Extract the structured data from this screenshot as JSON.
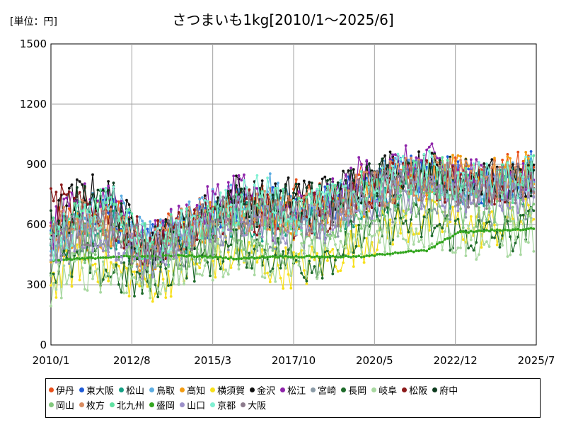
{
  "chart_data": {
    "type": "line",
    "title": "さつまいも1kg[2010/1～2025/6]",
    "unit_label": "[単位：円]",
    "ylim": [
      0,
      1500
    ],
    "y_ticks": [
      0,
      300,
      600,
      900,
      1200,
      1500
    ],
    "y_tick_labels": [
      "0",
      "300",
      "600",
      "900",
      "1200",
      "1500"
    ],
    "x_start": "2010-01",
    "x_end": "2025-07",
    "x_ticks": [
      "2010-01",
      "2012-08",
      "2015-03",
      "2017-10",
      "2020-05",
      "2022-12",
      "2025-07"
    ],
    "x_tick_labels": [
      "2010/1",
      "2012/8",
      "2015/3",
      "2017/10",
      "2020/5",
      "2022/12",
      "2025/7"
    ],
    "grid": true,
    "legend_position": "bottom",
    "anchor_dates": [
      "2010-01",
      "2011-01",
      "2012-01",
      "2013-01",
      "2014-01",
      "2015-01",
      "2016-01",
      "2017-01",
      "2018-01",
      "2019-01",
      "2020-01",
      "2021-01",
      "2022-01",
      "2023-01",
      "2024-01",
      "2025-01",
      "2025-06"
    ],
    "series": [
      {
        "name": "伊丹",
        "color": "#e8501a",
        "values": [
          560,
          620,
          650,
          480,
          610,
          640,
          700,
          690,
          720,
          700,
          800,
          860,
          830,
          850,
          820,
          860,
          880
        ]
      },
      {
        "name": "東大阪",
        "color": "#1f5bd6",
        "values": [
          520,
          600,
          640,
          470,
          560,
          600,
          690,
          700,
          650,
          690,
          780,
          820,
          850,
          820,
          800,
          840,
          900
        ]
      },
      {
        "name": "松山",
        "color": "#16a085",
        "values": [
          500,
          610,
          580,
          450,
          520,
          570,
          640,
          620,
          600,
          650,
          720,
          780,
          800,
          780,
          780,
          800,
          820
        ]
      },
      {
        "name": "鳥取",
        "color": "#5dade2",
        "values": [
          540,
          650,
          680,
          500,
          580,
          660,
          720,
          760,
          640,
          700,
          760,
          840,
          830,
          810,
          790,
          820,
          860
        ]
      },
      {
        "name": "高知",
        "color": "#f39c12",
        "values": [
          510,
          580,
          560,
          460,
          540,
          620,
          660,
          640,
          620,
          680,
          740,
          800,
          820,
          840,
          830,
          850,
          870
        ]
      },
      {
        "name": "横須賀",
        "color": "#f7e01c",
        "values": [
          320,
          420,
          380,
          300,
          360,
          420,
          460,
          400,
          380,
          440,
          520,
          600,
          620,
          600,
          580,
          620,
          640
        ]
      },
      {
        "name": "金沢",
        "color": "#111111",
        "values": [
          600,
          760,
          720,
          480,
          560,
          660,
          760,
          700,
          760,
          740,
          850,
          880,
          860,
          860,
          820,
          800,
          820
        ]
      },
      {
        "name": "松江",
        "color": "#8e24aa",
        "values": [
          560,
          700,
          760,
          470,
          600,
          680,
          800,
          620,
          680,
          720,
          860,
          880,
          900,
          860,
          820,
          800,
          860
        ]
      },
      {
        "name": "宮崎",
        "color": "#8a9aa6",
        "values": [
          440,
          540,
          520,
          400,
          480,
          520,
          600,
          560,
          560,
          600,
          680,
          720,
          740,
          720,
          700,
          720,
          740
        ]
      },
      {
        "name": "長岡",
        "color": "#1e6b2a",
        "values": [
          380,
          420,
          360,
          300,
          400,
          440,
          500,
          460,
          400,
          460,
          560,
          620,
          600,
          560,
          540,
          560,
          600
        ]
      },
      {
        "name": "岐阜",
        "color": "#a8d8a0",
        "values": [
          300,
          380,
          360,
          320,
          360,
          420,
          460,
          420,
          420,
          460,
          520,
          560,
          580,
          540,
          520,
          540,
          560
        ]
      },
      {
        "name": "松阪",
        "color": "#8b1a1a",
        "values": [
          700,
          680,
          620,
          500,
          560,
          620,
          680,
          640,
          640,
          680,
          760,
          800,
          820,
          800,
          780,
          780,
          800
        ]
      },
      {
        "name": "府中",
        "color": "#0d3b1e",
        "values": [
          580,
          720,
          700,
          460,
          540,
          600,
          700,
          680,
          700,
          720,
          800,
          840,
          860,
          820,
          800,
          780,
          800
        ]
      },
      {
        "name": "岡山",
        "color": "#82c77d",
        "values": [
          440,
          520,
          500,
          380,
          460,
          500,
          560,
          540,
          520,
          560,
          640,
          680,
          700,
          680,
          660,
          680,
          700
        ]
      },
      {
        "name": "枚方",
        "color": "#d98b5f",
        "values": [
          560,
          620,
          600,
          480,
          560,
          620,
          680,
          660,
          640,
          700,
          760,
          820,
          840,
          820,
          800,
          820,
          840
        ]
      },
      {
        "name": "北九州",
        "color": "#5ee0a0",
        "values": [
          520,
          640,
          720,
          500,
          560,
          640,
          700,
          680,
          660,
          700,
          760,
          820,
          840,
          820,
          800,
          820,
          840
        ]
      },
      {
        "name": "盛岡",
        "color": "#33a61f",
        "values": [
          420,
          430,
          440,
          440,
          445,
          440,
          430,
          440,
          440,
          440,
          440,
          460,
          470,
          560,
          570,
          575,
          580
        ]
      },
      {
        "name": "山口",
        "color": "#9b8fc9",
        "values": [
          480,
          560,
          540,
          420,
          500,
          560,
          640,
          600,
          600,
          640,
          720,
          760,
          780,
          760,
          740,
          760,
          780
        ]
      },
      {
        "name": "京都",
        "color": "#7ff0d2",
        "values": [
          520,
          620,
          700,
          480,
          560,
          620,
          700,
          760,
          640,
          700,
          760,
          840,
          860,
          820,
          800,
          820,
          860
        ]
      },
      {
        "name": "大阪",
        "color": "#8c7b8c",
        "values": [
          500,
          600,
          580,
          460,
          540,
          600,
          660,
          640,
          620,
          660,
          740,
          800,
          820,
          800,
          780,
          800,
          820
        ]
      }
    ]
  }
}
